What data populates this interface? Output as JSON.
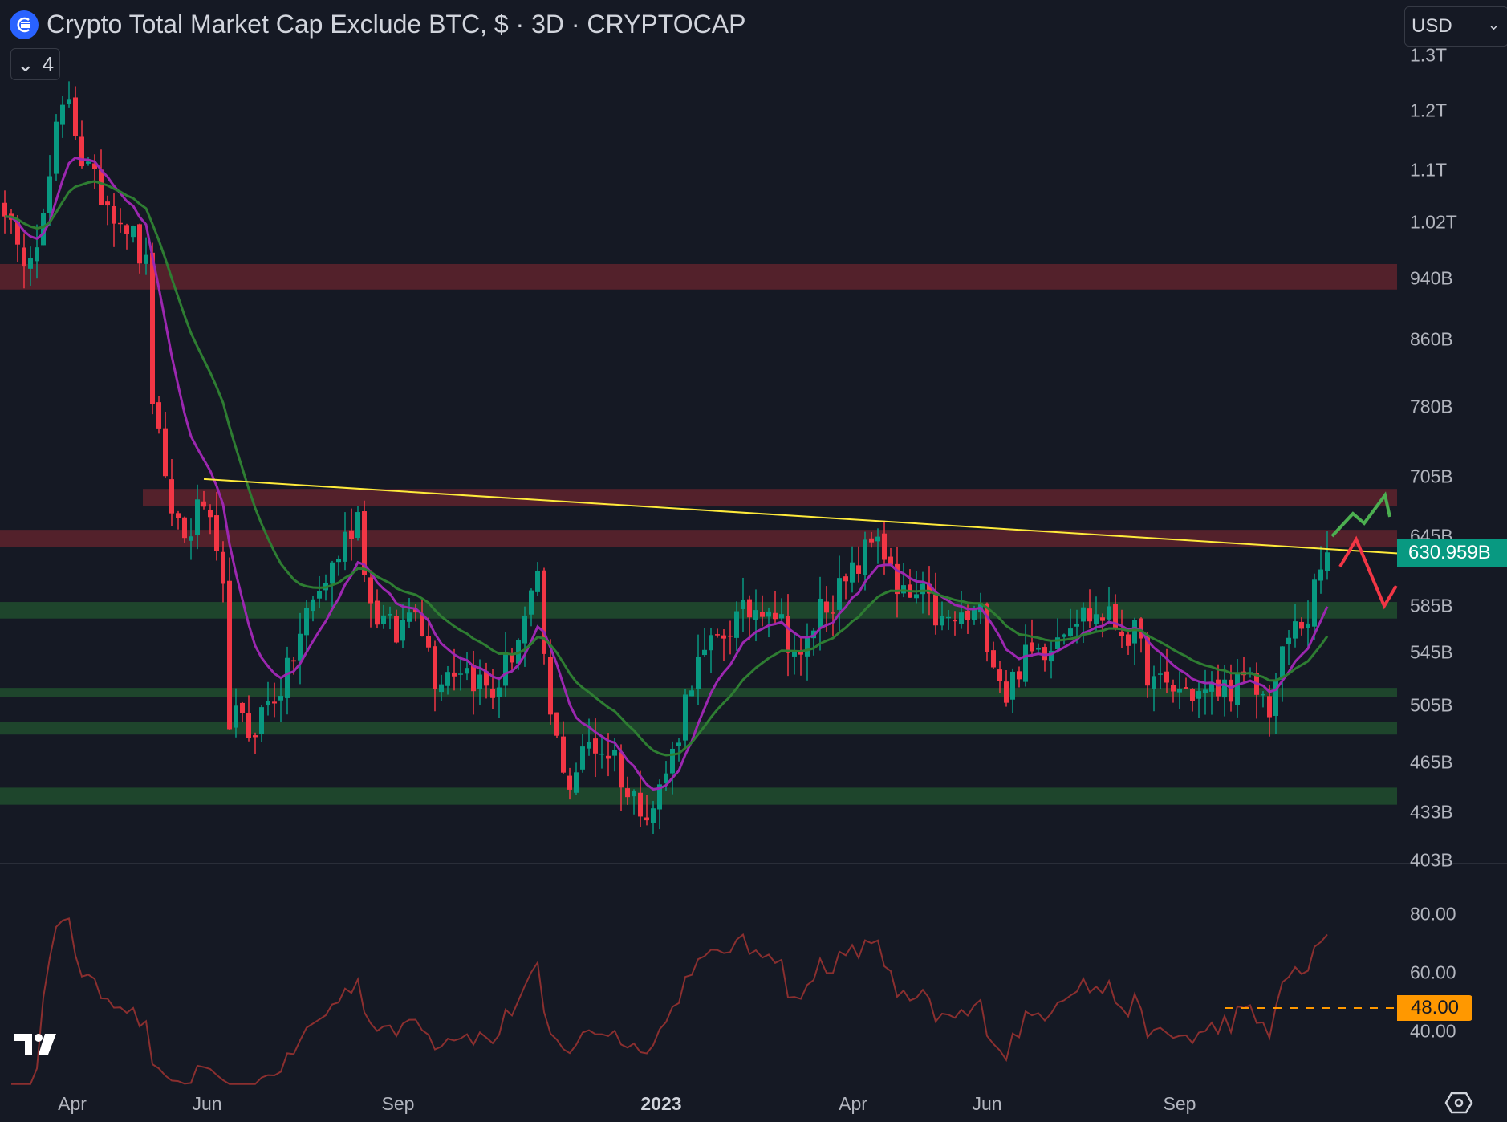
{
  "header": {
    "title": "Crypto Total Market Cap Exclude BTC, $ · 3D · CRYPTOCAP",
    "indicator_count": "4",
    "currency": "USD"
  },
  "price_axis": [
    "1.3T",
    "1.2T",
    "1.1T",
    "1.02T",
    "940B",
    "860B",
    "780B",
    "705B",
    "645B",
    "585B",
    "545B",
    "505B",
    "465B",
    "433B",
    "403B"
  ],
  "rsi_axis": [
    "80.00",
    "60.00",
    "40.00"
  ],
  "time_axis": [
    "Apr",
    "Jun",
    "Sep",
    "2023",
    "Apr",
    "Jun",
    "Sep"
  ],
  "last_price_label": "630.959B",
  "rsi_marker_label": "48.00",
  "colors": {
    "up": "#089981",
    "down": "#f23645",
    "ema_fast": "#9c27b0",
    "ema_slow": "#2e7d32",
    "rsi": "#8b2f2f",
    "trendline": "#ffeb3b",
    "resistance": "#5a222c",
    "support": "#1f4a2e",
    "marker": "#ff9800"
  },
  "chart_data": {
    "type": "candlestick",
    "title": "Crypto Total Market Cap Exclude BTC, $ · 3D · CRYPTOCAP",
    "interval": "3D",
    "scale": "log",
    "ylim_billions": [
      395,
      1330
    ],
    "close_keypoints_billions": [
      [
        0,
        1050
      ],
      [
        2,
        966
      ],
      [
        6,
        1020
      ],
      [
        8,
        1157
      ],
      [
        10,
        1231
      ],
      [
        12,
        1120
      ],
      [
        14,
        1077
      ],
      [
        19,
        1020
      ],
      [
        22,
        953
      ],
      [
        23,
        793
      ],
      [
        25,
        690
      ],
      [
        28,
        644
      ],
      [
        31,
        680
      ],
      [
        34,
        590
      ],
      [
        35,
        499
      ],
      [
        38,
        485
      ],
      [
        42,
        513
      ],
      [
        44,
        528
      ],
      [
        47,
        576
      ],
      [
        50,
        607
      ],
      [
        55,
        668
      ],
      [
        57,
        584
      ],
      [
        61,
        558
      ],
      [
        64,
        590
      ],
      [
        67,
        528
      ],
      [
        71,
        536
      ],
      [
        76,
        513
      ],
      [
        80,
        558
      ],
      [
        83,
        600
      ],
      [
        85,
        493
      ],
      [
        88,
        451
      ],
      [
        91,
        478
      ],
      [
        95,
        470
      ],
      [
        97,
        443
      ],
      [
        101,
        436
      ],
      [
        104,
        470
      ],
      [
        107,
        528
      ],
      [
        113,
        568
      ],
      [
        119,
        590
      ],
      [
        122,
        558
      ],
      [
        124,
        536
      ],
      [
        127,
        584
      ],
      [
        131,
        600
      ],
      [
        136,
        652
      ],
      [
        139,
        590
      ],
      [
        143,
        590
      ],
      [
        146,
        568
      ],
      [
        152,
        576
      ],
      [
        156,
        513
      ],
      [
        158,
        536
      ],
      [
        162,
        551
      ],
      [
        166,
        576
      ],
      [
        171,
        576
      ],
      [
        176,
        558
      ],
      [
        179,
        520
      ],
      [
        187,
        513
      ],
      [
        191,
        520
      ],
      [
        194,
        520
      ],
      [
        197,
        505
      ],
      [
        200,
        558
      ],
      [
        203,
        576
      ],
      [
        206,
        631
      ]
    ],
    "last_close_billions": 630.959,
    "indicators": [
      {
        "name": "EMA fast",
        "period": 9
      },
      {
        "name": "EMA slow",
        "period": 21
      },
      {
        "name": "RSI",
        "period": 14,
        "ylim": [
          20,
          90
        ],
        "marker_level": 48
      }
    ],
    "zones_billions": [
      {
        "kind": "resistance",
        "range": [
          925,
          960
        ]
      },
      {
        "kind": "resistance",
        "range": [
          675,
          692
        ],
        "from_index": 22
      },
      {
        "kind": "resistance",
        "range": [
          636,
          652
        ]
      },
      {
        "kind": "support",
        "range": [
          573,
          587
        ]
      },
      {
        "kind": "support",
        "range": [
          511,
          518
        ]
      },
      {
        "kind": "support",
        "range": [
          484,
          493
        ]
      },
      {
        "kind": "support",
        "range": [
          437,
          448
        ]
      }
    ],
    "trendline": {
      "from": [
        31,
        702
      ],
      "to": [
        217,
        630
      ]
    }
  }
}
